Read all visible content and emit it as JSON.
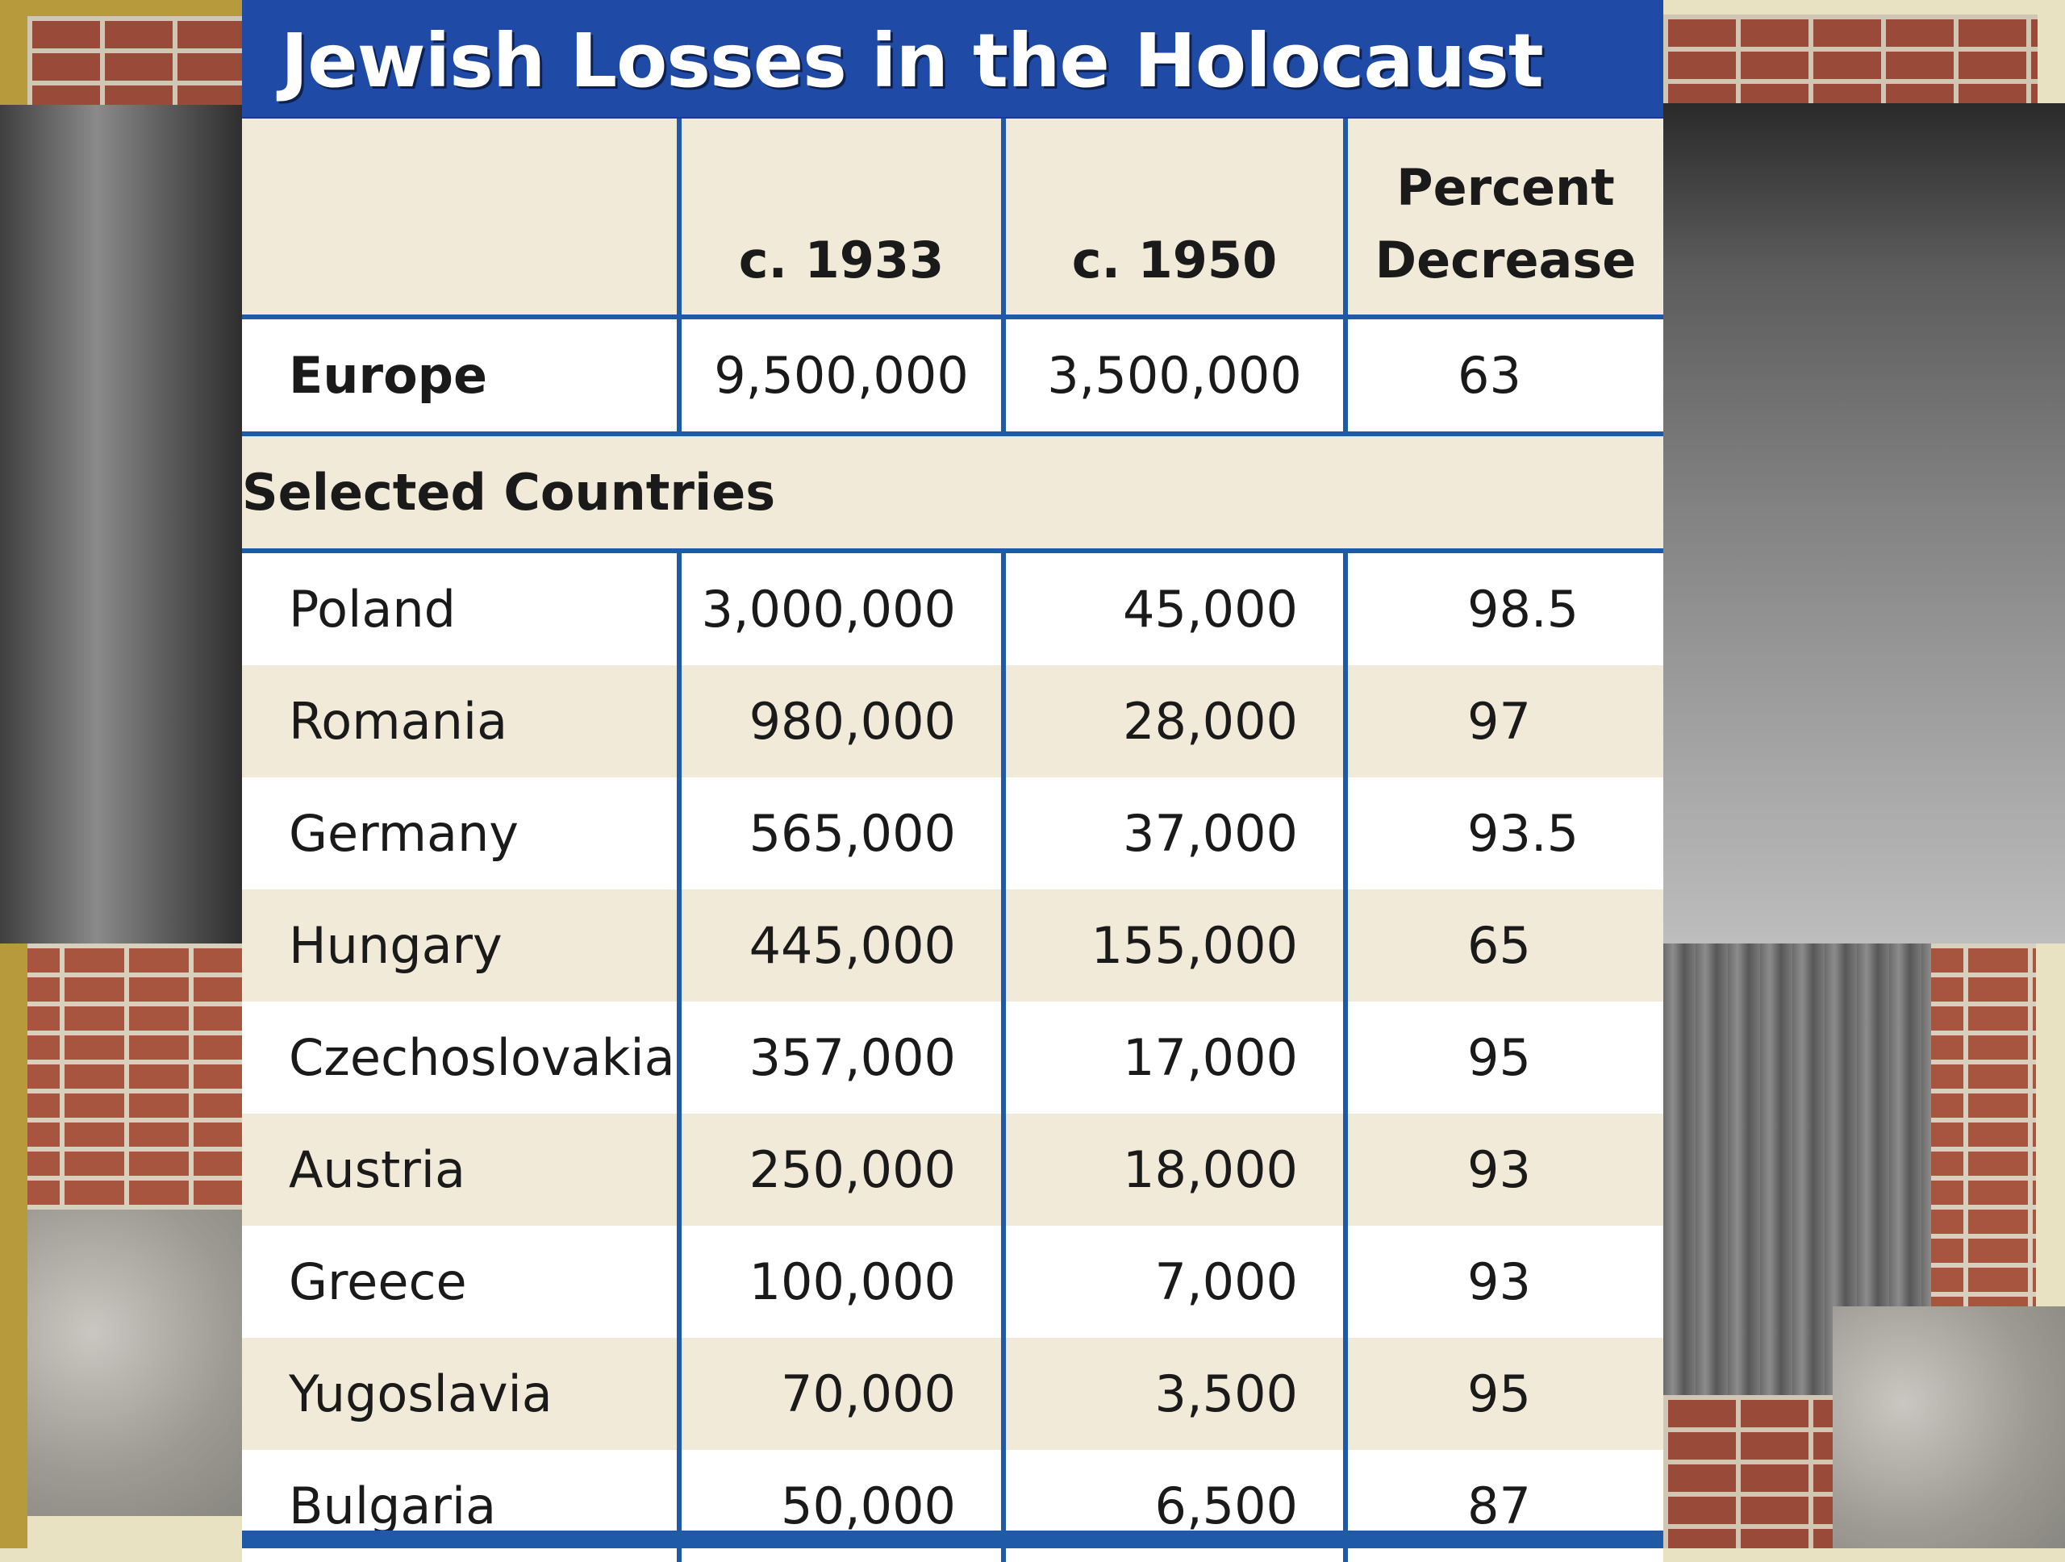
{
  "title": "Jewish Losses in the Holocaust",
  "columns": {
    "c1933": "c. 1933",
    "c1950": "c. 1950",
    "pct_line1": "Percent",
    "pct_line2": "Decrease"
  },
  "europe": {
    "name": "Europe",
    "c1933": "9,500,000",
    "c1950": "3,500,000",
    "pct": "63"
  },
  "section_label": "Selected Countries",
  "rows": [
    {
      "name": "Poland",
      "c1933": "3,000,000",
      "c1950": "45,000",
      "pct": "98.5"
    },
    {
      "name": "Romania",
      "c1933": "980,000",
      "c1950": "28,000",
      "pct": "97"
    },
    {
      "name": "Germany",
      "c1933": "565,000",
      "c1950": "37,000",
      "pct": "93.5"
    },
    {
      "name": "Hungary",
      "c1933": "445,000",
      "c1950": "155,000",
      "pct": "65"
    },
    {
      "name": "Czechoslovakia",
      "c1933": "357,000",
      "c1950": "17,000",
      "pct": "95"
    },
    {
      "name": "Austria",
      "c1933": "250,000",
      "c1950": "18,000",
      "pct": "93"
    },
    {
      "name": "Greece",
      "c1933": "100,000",
      "c1950": "7,000",
      "pct": "93"
    },
    {
      "name": "Yugoslavia",
      "c1933": "70,000",
      "c1950": "3,500",
      "pct": "95"
    },
    {
      "name": "Bulgaria",
      "c1933": "50,000",
      "c1950": "6,500",
      "pct": "87"
    }
  ],
  "colors": {
    "title_bar": "#1f4aa6",
    "grid_lines": "#1f5aa8",
    "tan_row": "#f2ead8",
    "white_row": "#ffffff"
  }
}
